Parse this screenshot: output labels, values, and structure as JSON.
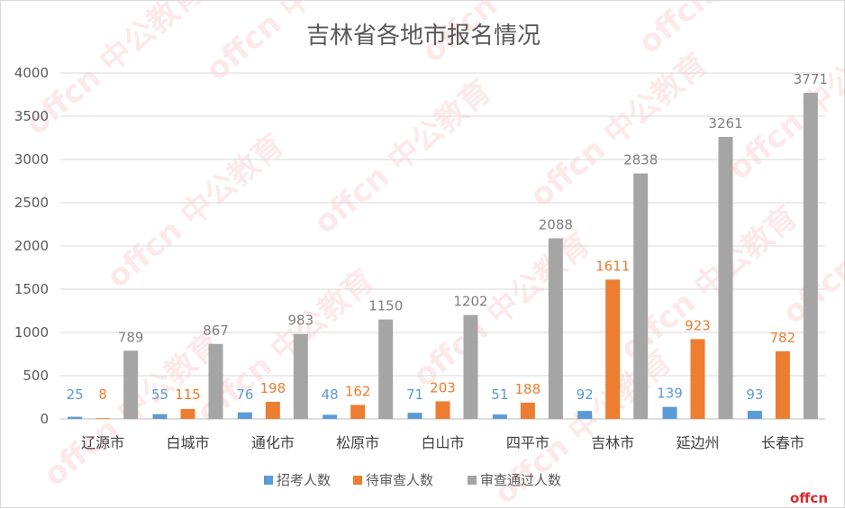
{
  "chart_data": {
    "type": "bar",
    "title": "吉林省各地市报名情况",
    "xlabel": "",
    "ylabel": "",
    "categories": [
      "辽源市",
      "白城市",
      "通化市",
      "松原市",
      "白山市",
      "四平市",
      "吉林市",
      "延边州",
      "长春市"
    ],
    "series": [
      {
        "name": "招考人数",
        "color": "#5b9bd5",
        "values": [
          25,
          55,
          76,
          48,
          71,
          51,
          92,
          139,
          93
        ]
      },
      {
        "name": "待审查人数",
        "color": "#ed7d31",
        "values": [
          8,
          115,
          198,
          162,
          203,
          188,
          1611,
          923,
          782
        ]
      },
      {
        "name": "审查通过人数",
        "color": "#a5a5a5",
        "values": [
          789,
          867,
          983,
          1150,
          1202,
          2088,
          2838,
          3261,
          3771
        ]
      }
    ],
    "ylim": [
      0,
      4000
    ],
    "yticks": [
      0,
      500,
      1000,
      1500,
      2000,
      2500,
      3000,
      3500,
      4000
    ],
    "grid": true,
    "legend": "bottom"
  },
  "branding": {
    "logo_text": "offcn",
    "watermark": "offcn 中公教育"
  },
  "colors": {
    "grid": "#d9d9d9",
    "axis": "#bfbfbf",
    "brand": "#e0262b"
  }
}
